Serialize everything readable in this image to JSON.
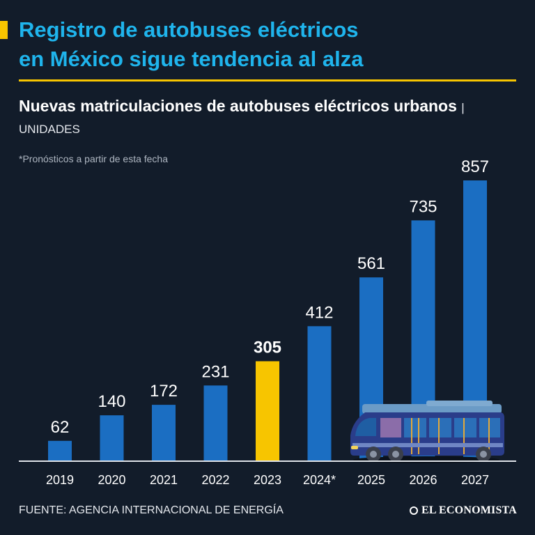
{
  "header": {
    "title_line1": "Registro de autobuses eléctricos",
    "title_line2": "en México sigue tendencia al alza",
    "subtitle": "Nuevas matriculaciones de autobuses eléctricos urbanos",
    "unit_separator": "|",
    "unit": "UNIDADES",
    "note": "*Pronósticos a partir de esta fecha"
  },
  "footer": {
    "source": "FUENTE: AGENCIA INTERNACIONAL DE ENERGÍA",
    "logo": "EL ECONOMISTA"
  },
  "colors": {
    "background": "#121c2a",
    "bar": "#1b6ec2",
    "highlight": "#f7c500",
    "title": "#1fb4ec"
  },
  "chart_data": {
    "type": "bar",
    "title": "Nuevas matriculaciones de autobuses eléctricos urbanos",
    "ylabel": "UNIDADES",
    "xlabel": "",
    "categories": [
      "2019",
      "2020",
      "2021",
      "2022",
      "2023",
      "2024*",
      "2025",
      "2026",
      "2027"
    ],
    "values": [
      62,
      140,
      172,
      231,
      305,
      412,
      561,
      735,
      857
    ],
    "highlight_category": "2023",
    "ylim": [
      0,
      857
    ],
    "grid": false,
    "legend": "none",
    "annotations": [
      "*Pronósticos a partir de esta fecha"
    ]
  }
}
